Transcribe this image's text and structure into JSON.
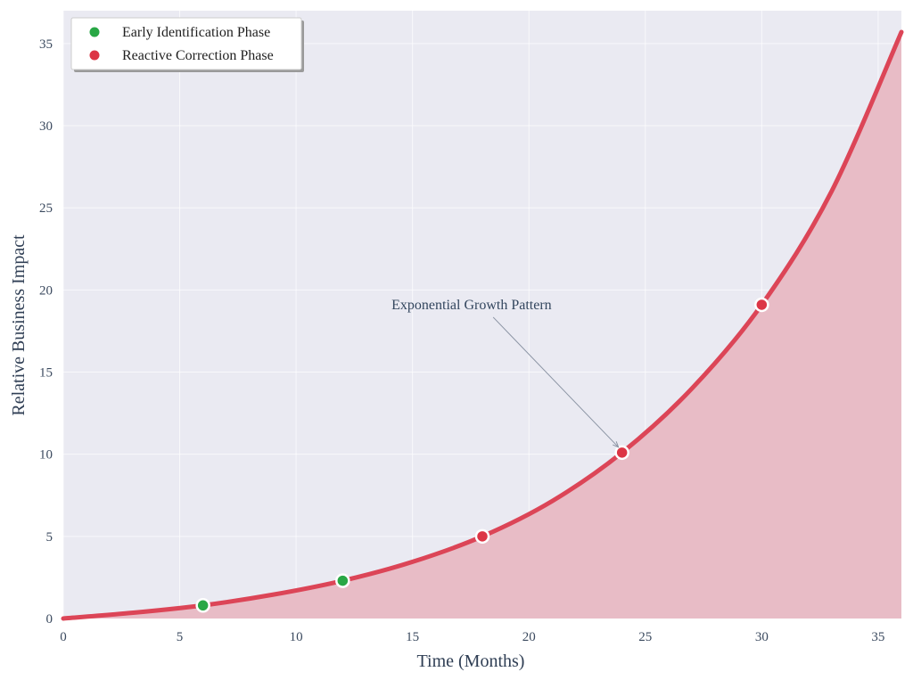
{
  "chart_data": {
    "type": "area",
    "xlabel": "Time (Months)",
    "ylabel": "Relative Business Impact",
    "xlim": [
      0,
      36
    ],
    "ylim": [
      0,
      37
    ],
    "x_ticks": [
      0,
      5,
      10,
      15,
      20,
      25,
      30,
      35
    ],
    "y_ticks": [
      0,
      5,
      10,
      15,
      20,
      25,
      30,
      35
    ],
    "grid": true,
    "legend_position": "top-left",
    "curve": {
      "name": "",
      "color": "#dc4557",
      "fill_color": "#e8bcc6",
      "x": [
        0,
        3,
        6,
        9,
        12,
        15,
        18,
        21,
        24,
        27,
        30,
        33,
        36
      ],
      "y": [
        0,
        0.35,
        0.8,
        1.45,
        2.3,
        3.45,
        5.0,
        7.15,
        10.1,
        14.0,
        19.1,
        26.0,
        35.7
      ]
    },
    "series": [
      {
        "name": "Early Identification Phase",
        "color": "#28a745",
        "points": [
          {
            "x": 6,
            "y": 0.8
          },
          {
            "x": 12,
            "y": 2.3
          }
        ]
      },
      {
        "name": "Reactive Correction Phase",
        "color": "#dc3545",
        "points": [
          {
            "x": 18,
            "y": 5.0
          },
          {
            "x": 24,
            "y": 10.1
          },
          {
            "x": 30,
            "y": 19.1
          }
        ]
      }
    ],
    "annotations": [
      {
        "text": "Exponential Growth Pattern",
        "target_x": 24,
        "target_y": 10.1,
        "text_x": 14.1,
        "text_y": 19.1
      }
    ],
    "background_color": "#eaeaf2"
  }
}
